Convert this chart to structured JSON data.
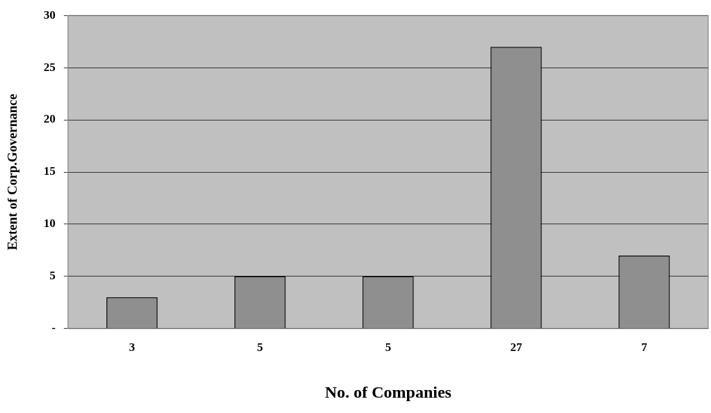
{
  "chart_data": {
    "type": "bar",
    "xlabel": "No. of Companies",
    "ylabel": "Extent of Corp.Governance",
    "categories": [
      "3",
      "5",
      "5",
      "27",
      "7"
    ],
    "values": [
      3,
      5,
      5,
      27,
      7
    ],
    "color": "#8f8f8f",
    "ylim": [
      0,
      30
    ],
    "yticks": [
      {
        "value": 0,
        "label": "-"
      },
      5,
      10,
      15,
      20,
      25,
      30
    ],
    "grid": "y",
    "legend": false
  }
}
